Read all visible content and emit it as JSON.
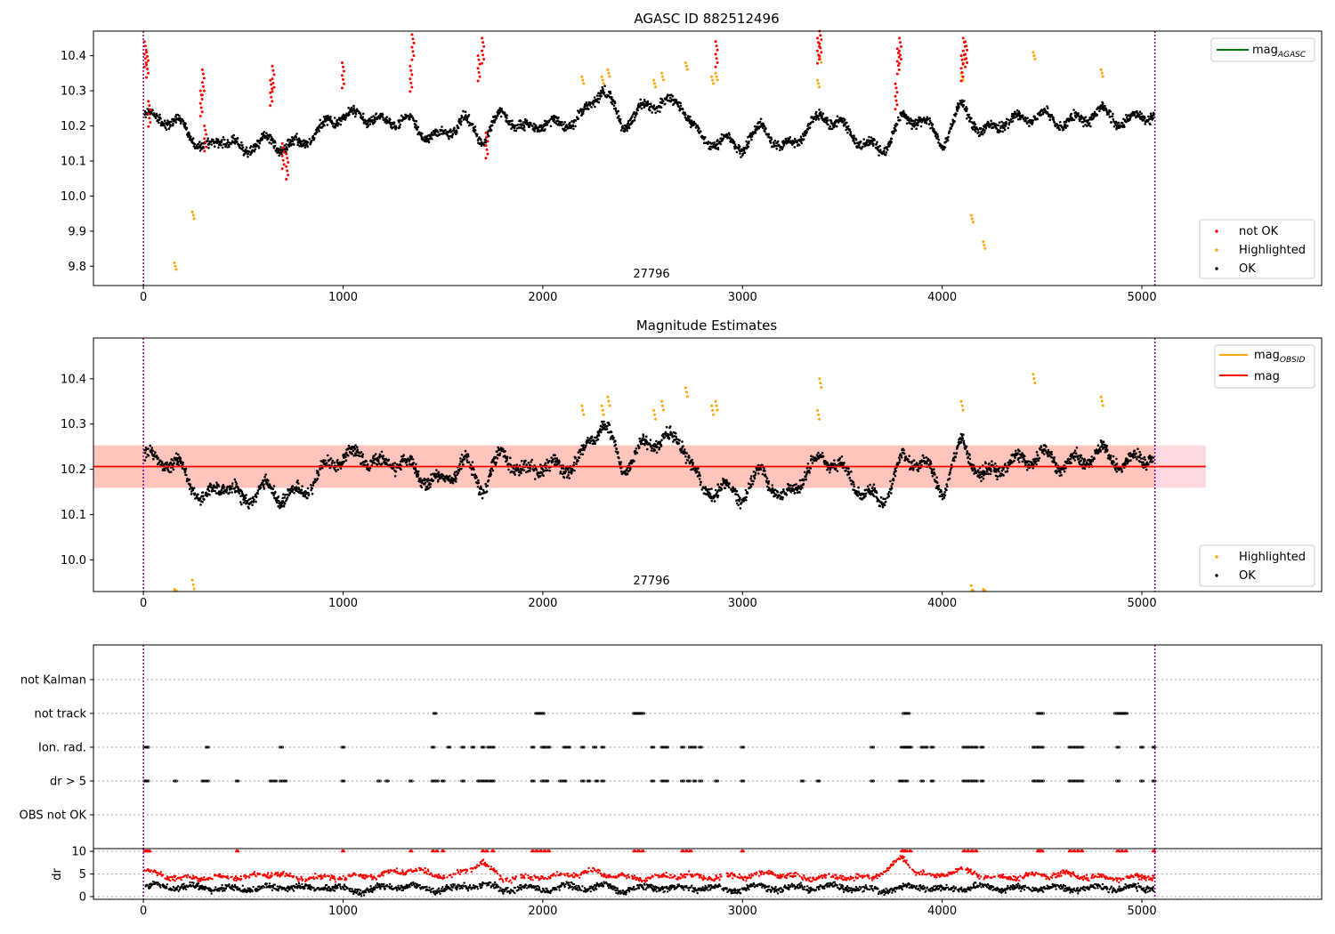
{
  "chart_data": [
    {
      "type": "scatter",
      "title": "AGASC ID 882512496",
      "xlabel": "",
      "ylabel": "",
      "xlim": [
        -250,
        5900
      ],
      "ylim": [
        9.745,
        10.47
      ],
      "x_ticks": [
        "0",
        "1000",
        "2000",
        "3000",
        "4000",
        "5000"
      ],
      "y_ticks": [
        "9.8",
        "9.9",
        "10.0",
        "10.1",
        "10.2",
        "10.3",
        "10.4"
      ],
      "annotation": "27796",
      "obs_bounds": [
        0,
        5065
      ],
      "grid": false,
      "legend_lines": {
        "placement": "top-right",
        "entries": [
          {
            "label": "mag",
            "sub": "AGASC",
            "color": "#008000"
          }
        ]
      },
      "legend_points": {
        "placement": "bottom-right",
        "entries": [
          {
            "label": "not OK",
            "color": "#ff0000"
          },
          {
            "label": "Highlighted",
            "color": "#ffa500"
          },
          {
            "label": "OK",
            "color": "#000000"
          }
        ]
      },
      "series": [
        {
          "name": "OK",
          "color": "#000000",
          "x": [
            0,
            100,
            200,
            300,
            400,
            500,
            600,
            700,
            800,
            900,
            1000,
            1100,
            1200,
            1300,
            1400,
            1500,
            1600,
            1700,
            1800,
            1900,
            2000,
            2100,
            2200,
            2300,
            2400,
            2500,
            2600,
            2700,
            2800,
            2900,
            3000,
            3100,
            3200,
            3300,
            3400,
            3500,
            3600,
            3700,
            3800,
            3900,
            4000,
            4100,
            4200,
            4300,
            4400,
            4500,
            4600,
            4700,
            4800,
            4900,
            5000,
            5050
          ],
          "y": [
            10.23,
            10.22,
            10.2,
            10.13,
            10.17,
            10.13,
            10.16,
            10.14,
            10.15,
            10.2,
            10.23,
            10.23,
            10.21,
            10.22,
            10.18,
            10.17,
            10.22,
            10.16,
            10.24,
            10.19,
            10.21,
            10.2,
            10.23,
            10.31,
            10.2,
            10.25,
            10.27,
            10.26,
            10.15,
            10.16,
            10.14,
            10.2,
            10.13,
            10.18,
            10.23,
            10.2,
            10.15,
            10.13,
            10.22,
            10.22,
            10.15,
            10.26,
            10.18,
            10.21,
            10.22,
            10.23,
            10.21,
            10.22,
            10.24,
            10.21,
            10.23,
            10.23
          ]
        },
        {
          "name": "Highlighted",
          "color": "#ffa500",
          "x": [
            160,
            250,
            2200,
            2300,
            2330,
            2560,
            2600,
            2720,
            2850,
            2870,
            3380,
            3390,
            4100,
            4150,
            4210,
            4460,
            4800
          ],
          "y": [
            9.81,
            9.955,
            10.34,
            10.34,
            10.36,
            10.33,
            10.35,
            10.38,
            10.34,
            10.35,
            10.33,
            10.4,
            10.35,
            9.945,
            9.87,
            10.41,
            10.36
          ]
        },
        {
          "name": "not OK",
          "color": "#ff0000",
          "x": [
            10,
            20,
            30,
            290,
            300,
            310,
            640,
            650,
            700,
            720,
            1000,
            1340,
            1350,
            1680,
            1700,
            1720,
            2870,
            3380,
            3390,
            3770,
            3780,
            3790,
            4100,
            4110,
            4120
          ],
          "y": [
            10.44,
            10.41,
            10.27,
            10.3,
            10.36,
            10.2,
            10.33,
            10.37,
            10.15,
            10.12,
            10.38,
            10.37,
            10.46,
            10.4,
            10.45,
            10.18,
            10.44,
            10.45,
            10.47,
            10.32,
            10.42,
            10.45,
            10.4,
            10.45,
            10.44
          ]
        }
      ]
    },
    {
      "type": "scatter",
      "title": "Magnitude Estimates",
      "xlabel": "",
      "ylabel": "",
      "xlim": [
        -250,
        5900
      ],
      "ylim": [
        9.93,
        10.49
      ],
      "x_ticks": [
        "0",
        "1000",
        "2000",
        "3000",
        "4000",
        "5000"
      ],
      "y_ticks": [
        "10.0",
        "10.1",
        "10.2",
        "10.3",
        "10.4"
      ],
      "annotation": "27796",
      "obs_bounds": [
        0,
        5065
      ],
      "grid": false,
      "mag": 10.206,
      "band_outer": [
        10.159,
        10.253
      ],
      "band_inner": [
        10.159,
        10.253
      ],
      "band_x": [
        -250,
        5320
      ],
      "legend_lines": {
        "placement": "top-right",
        "entries": [
          {
            "label": "mag",
            "sub": "OBSID",
            "color": "#ffa500"
          },
          {
            "label": "mag",
            "sub": "",
            "color": "#ff0000"
          }
        ]
      },
      "legend_points": {
        "placement": "bottom-right",
        "entries": [
          {
            "label": "Highlighted",
            "color": "#ffa500"
          },
          {
            "label": "OK",
            "color": "#000000"
          }
        ]
      },
      "series": [
        {
          "name": "OK",
          "color": "#000000",
          "x": [
            0,
            100,
            200,
            300,
            400,
            500,
            600,
            700,
            800,
            900,
            1000,
            1100,
            1200,
            1300,
            1400,
            1500,
            1600,
            1700,
            1800,
            1900,
            2000,
            2100,
            2200,
            2300,
            2400,
            2500,
            2600,
            2700,
            2800,
            2900,
            3000,
            3100,
            3200,
            3300,
            3400,
            3500,
            3600,
            3700,
            3800,
            3900,
            4000,
            4100,
            4200,
            4300,
            4400,
            4500,
            4600,
            4700,
            4800,
            4900,
            5000,
            5050
          ],
          "y": [
            10.23,
            10.22,
            10.2,
            10.13,
            10.17,
            10.13,
            10.16,
            10.14,
            10.15,
            10.2,
            10.23,
            10.23,
            10.21,
            10.22,
            10.18,
            10.17,
            10.22,
            10.16,
            10.24,
            10.19,
            10.21,
            10.2,
            10.23,
            10.31,
            10.2,
            10.25,
            10.27,
            10.26,
            10.15,
            10.16,
            10.14,
            10.2,
            10.13,
            10.18,
            10.23,
            10.2,
            10.15,
            10.13,
            10.22,
            10.22,
            10.15,
            10.26,
            10.18,
            10.21,
            10.22,
            10.23,
            10.21,
            10.22,
            10.24,
            10.21,
            10.23,
            10.23
          ]
        },
        {
          "name": "Highlighted",
          "color": "#ffa500",
          "x": [
            160,
            250,
            2200,
            2300,
            2330,
            2560,
            2600,
            2720,
            2850,
            2870,
            3380,
            3390,
            4100,
            4150,
            4210,
            4460,
            4800
          ],
          "y": [
            9.935,
            9.955,
            10.34,
            10.34,
            10.36,
            10.33,
            10.35,
            10.38,
            10.34,
            10.35,
            10.33,
            10.4,
            10.35,
            9.943,
            9.935,
            10.41,
            10.36
          ]
        }
      ]
    },
    {
      "type": "scatter",
      "title": "",
      "xlabel": "",
      "ylabel": "",
      "xlim": [
        -250,
        5900
      ],
      "obs_bounds": [
        0,
        5065
      ],
      "categories": [
        "not Kalman",
        "not track",
        "Ion. rad.",
        "dr > 5",
        "OBS not OK"
      ],
      "grid": true,
      "series": [
        {
          "name": "",
          "category": "not track",
          "color": "#000000",
          "x": [
            1460,
            1970,
            1980,
            1990,
            2000,
            2460,
            2470,
            2480,
            2490,
            2500,
            3810,
            3820,
            3830,
            4480,
            4490,
            4500,
            4870,
            4880,
            4890,
            4900,
            4910,
            4920
          ]
        },
        {
          "name": "",
          "category": "Ion. rad.",
          "color": "#000000",
          "x": [
            10,
            20,
            320,
            690,
            1000,
            1450,
            1530,
            1600,
            1650,
            1700,
            1730,
            1750,
            1950,
            2000,
            2010,
            2030,
            2110,
            2130,
            2200,
            2260,
            2300,
            2550,
            2600,
            2620,
            2700,
            2740,
            2760,
            2790,
            3000,
            3650,
            3800,
            3810,
            3820,
            3830,
            3840,
            3900,
            3920,
            3950,
            4110,
            4130,
            4150,
            4170,
            4200,
            4460,
            4480,
            4500,
            4640,
            4660,
            4680,
            4700,
            4880,
            5000,
            5060
          ]
        },
        {
          "name": "",
          "category": "dr > 5",
          "color": "#000000",
          "x": [
            10,
            20,
            160,
            300,
            320,
            470,
            640,
            660,
            690,
            710,
            1000,
            1180,
            1220,
            1340,
            1450,
            1470,
            1500,
            1600,
            1680,
            1700,
            1720,
            1740,
            1750,
            1950,
            2000,
            2020,
            2090,
            2110,
            2200,
            2230,
            2270,
            2300,
            2550,
            2600,
            2620,
            2700,
            2730,
            2760,
            2790,
            2870,
            3000,
            3300,
            3380,
            3650,
            3790,
            3800,
            3820,
            3900,
            3950,
            4110,
            4130,
            4150,
            4170,
            4200,
            4460,
            4480,
            4500,
            4640,
            4660,
            4680,
            4700,
            4880,
            5000,
            5060
          ]
        }
      ]
    },
    {
      "type": "scatter",
      "title": "",
      "xlabel": "",
      "ylabel": "dr",
      "xlim": [
        -250,
        5900
      ],
      "ylim": [
        -0.6,
        10.6
      ],
      "x_ticks": [
        "0",
        "1000",
        "2000",
        "3000",
        "4000",
        "5000"
      ],
      "y_ticks": [
        "0",
        "5",
        "10"
      ],
      "grid": true,
      "obs_bounds": [
        0,
        5065
      ],
      "series": [
        {
          "name": "",
          "color": "#000000",
          "x": [
            0,
            100,
            200,
            300,
            400,
            500,
            600,
            700,
            800,
            900,
            1000,
            1100,
            1200,
            1300,
            1400,
            1500,
            1600,
            1700,
            1800,
            1900,
            2000,
            2100,
            2200,
            2300,
            2400,
            2500,
            2600,
            2700,
            2800,
            2900,
            3000,
            3100,
            3200,
            3300,
            3400,
            3500,
            3600,
            3700,
            3800,
            3900,
            4000,
            4100,
            4200,
            4300,
            4400,
            4500,
            4600,
            4700,
            4800,
            4900,
            5000,
            5050
          ],
          "y": [
            2.0,
            2.5,
            1.8,
            2.2,
            1.5,
            2.0,
            1.6,
            2.4,
            1.8,
            2.2,
            1.6,
            1.2,
            2.0,
            2.4,
            1.8,
            1.5,
            2.1,
            2.6,
            1.5,
            2.0,
            1.7,
            2.2,
            1.9,
            2.3,
            1.5,
            1.8,
            2.2,
            1.6,
            2.0,
            1.5,
            1.8,
            2.3,
            1.7,
            2.0,
            1.9,
            2.2,
            1.6,
            1.4,
            1.8,
            2.1,
            1.5,
            1.9,
            2.2,
            1.8,
            1.6,
            2.0,
            1.8,
            1.7,
            2.0,
            1.9,
            1.8,
            2.0
          ]
        },
        {
          "name": "",
          "color": "#ff0000",
          "x": [
            20,
            150,
            300,
            450,
            650,
            800,
            950,
            1150,
            1350,
            1450,
            1550,
            1700,
            1800,
            1950,
            2050,
            2250,
            2450,
            2600,
            2700,
            2850,
            3000,
            3150,
            3300,
            3450,
            3650,
            3800,
            3850,
            3950,
            4100,
            4250,
            4450,
            4600,
            4750,
            4850,
            4950,
            5050
          ],
          "y": [
            5.5,
            4.3,
            4.0,
            4.2,
            5.0,
            4.0,
            4.3,
            4.6,
            6.0,
            5.0,
            4.5,
            7.5,
            4.0,
            4.2,
            4.5,
            5.5,
            4.0,
            4.3,
            4.8,
            4.2,
            4.5,
            5.2,
            4.0,
            4.4,
            4.0,
            8.5,
            6.0,
            4.3,
            6.0,
            4.0,
            4.6,
            5.0,
            4.2,
            4.0,
            4.1,
            4.5
          ]
        },
        {
          "name": "",
          "color": "#ff0000",
          "clip": 10,
          "x": [
            10,
            20,
            30,
            470,
            1000,
            1340,
            1450,
            1470,
            1500,
            1700,
            1720,
            1750,
            1950,
            1970,
            1990,
            2010,
            2030,
            2460,
            2480,
            2500,
            2700,
            2720,
            2740,
            3000,
            3800,
            3810,
            3820,
            3840,
            4110,
            4130,
            4150,
            4170,
            4480,
            4490,
            4500,
            4640,
            4660,
            4680,
            4700,
            4880,
            4900,
            4920,
            5060
          ],
          "y": [
            10,
            10,
            10,
            10,
            10,
            10,
            10,
            10,
            10,
            10,
            10,
            10,
            10,
            10,
            10,
            10,
            10,
            10,
            10,
            10,
            10,
            10,
            10,
            10,
            10,
            10,
            10,
            10,
            10,
            10,
            10,
            10,
            10,
            10,
            10,
            10,
            10,
            10,
            10,
            10,
            10,
            10,
            10
          ]
        }
      ]
    }
  ]
}
